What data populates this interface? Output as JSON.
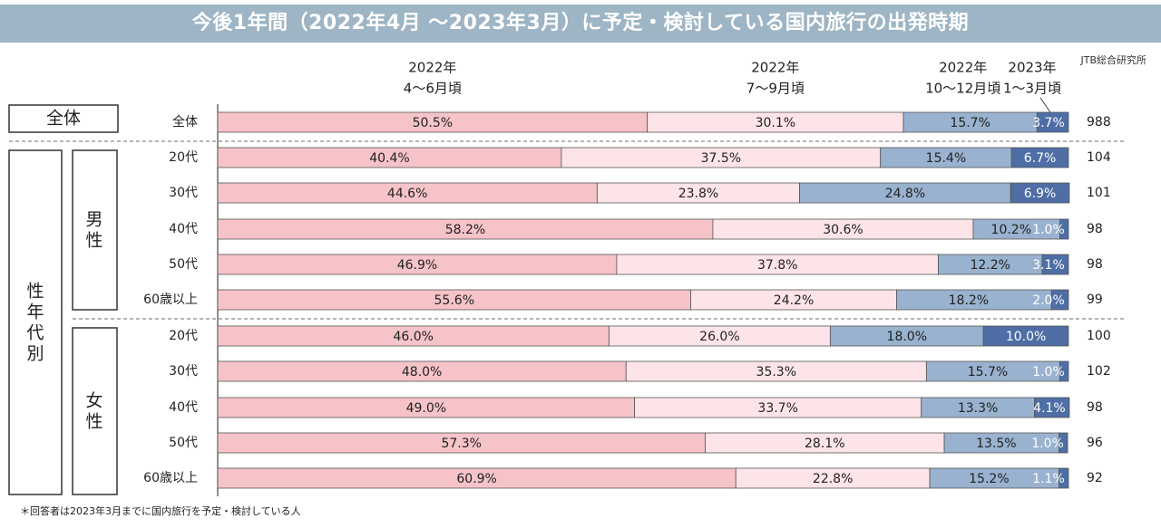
{
  "title": "今後1年間（2022年4月 〜2023年3月）に予定・検討している国内旅行の出発時期",
  "source": "JTB総合研究所",
  "note": "＊回答者は2023年3月までに国内旅行を予定・検討している人",
  "colors": {
    "p1": "#f5c3c8",
    "p2": "#fde4e8",
    "p3": "#99b2cf",
    "p4": "#4e6ea5",
    "title_bg": "#9db5c4"
  },
  "chart_data": {
    "type": "bar",
    "orientation": "horizontal-stacked-100",
    "xlim": [
      0,
      100
    ],
    "series": [
      {
        "name": "2022年 4〜6月頃",
        "head": [
          "2022年",
          "4〜6月頃"
        ]
      },
      {
        "name": "2022年 7〜9月頃",
        "head": [
          "2022年",
          "7〜9月頃"
        ]
      },
      {
        "name": "2022年 10〜12月頃",
        "head": [
          "2022年",
          "10〜12月頃"
        ]
      },
      {
        "name": "2023年 1〜3月頃",
        "head": [
          "2023年",
          "1〜3月頃"
        ]
      }
    ],
    "groups": [
      {
        "label": "全体",
        "sub": []
      },
      {
        "label": "性年代別",
        "sub": [
          "男性",
          "女性"
        ]
      }
    ],
    "rows": [
      {
        "category": "全体",
        "values": [
          50.5,
          30.1,
          15.7,
          3.7
        ],
        "labels": [
          "50.5%",
          "30.1%",
          "15.7%",
          "3.7%"
        ],
        "n": "988"
      },
      {
        "category": "20代",
        "values": [
          40.4,
          37.5,
          15.4,
          6.7
        ],
        "labels": [
          "40.4%",
          "37.5%",
          "15.4%",
          "6.7%"
        ],
        "n": "104"
      },
      {
        "category": "30代",
        "values": [
          44.6,
          23.8,
          24.8,
          6.9
        ],
        "labels": [
          "44.6%",
          "23.8%",
          "24.8%",
          "6.9%"
        ],
        "n": "101"
      },
      {
        "category": "40代",
        "values": [
          58.2,
          30.6,
          10.2,
          1.0
        ],
        "labels": [
          "58.2%",
          "30.6%",
          "10.2%",
          "1.0%"
        ],
        "n": "98"
      },
      {
        "category": "50代",
        "values": [
          46.9,
          37.8,
          12.2,
          3.1
        ],
        "labels": [
          "46.9%",
          "37.8%",
          "12.2%",
          "3.1%"
        ],
        "n": "98"
      },
      {
        "category": "60歳以上",
        "values": [
          55.6,
          24.2,
          18.2,
          2.0
        ],
        "labels": [
          "55.6%",
          "24.2%",
          "18.2%",
          "2.0%"
        ],
        "n": "99"
      },
      {
        "category": "20代",
        "values": [
          46.0,
          26.0,
          18.0,
          10.0
        ],
        "labels": [
          "46.0%",
          "26.0%",
          "18.0%",
          "10.0%"
        ],
        "n": "100"
      },
      {
        "category": "30代",
        "values": [
          48.0,
          35.3,
          15.7,
          1.0
        ],
        "labels": [
          "48.0%",
          "35.3%",
          "15.7%",
          "1.0%"
        ],
        "n": "102"
      },
      {
        "category": "40代",
        "values": [
          49.0,
          33.7,
          13.3,
          4.1
        ],
        "labels": [
          "49.0%",
          "33.7%",
          "13.3%",
          "4.1%"
        ],
        "n": "98"
      },
      {
        "category": "50代",
        "values": [
          57.3,
          28.1,
          13.5,
          1.0
        ],
        "labels": [
          "57.3%",
          "28.1%",
          "13.5%",
          "1.0%"
        ],
        "n": "96"
      },
      {
        "category": "60歳以上",
        "values": [
          60.9,
          22.8,
          15.2,
          1.1
        ],
        "labels": [
          "60.9%",
          "22.8%",
          "15.2%",
          "1.1%"
        ],
        "n": "92"
      }
    ]
  }
}
